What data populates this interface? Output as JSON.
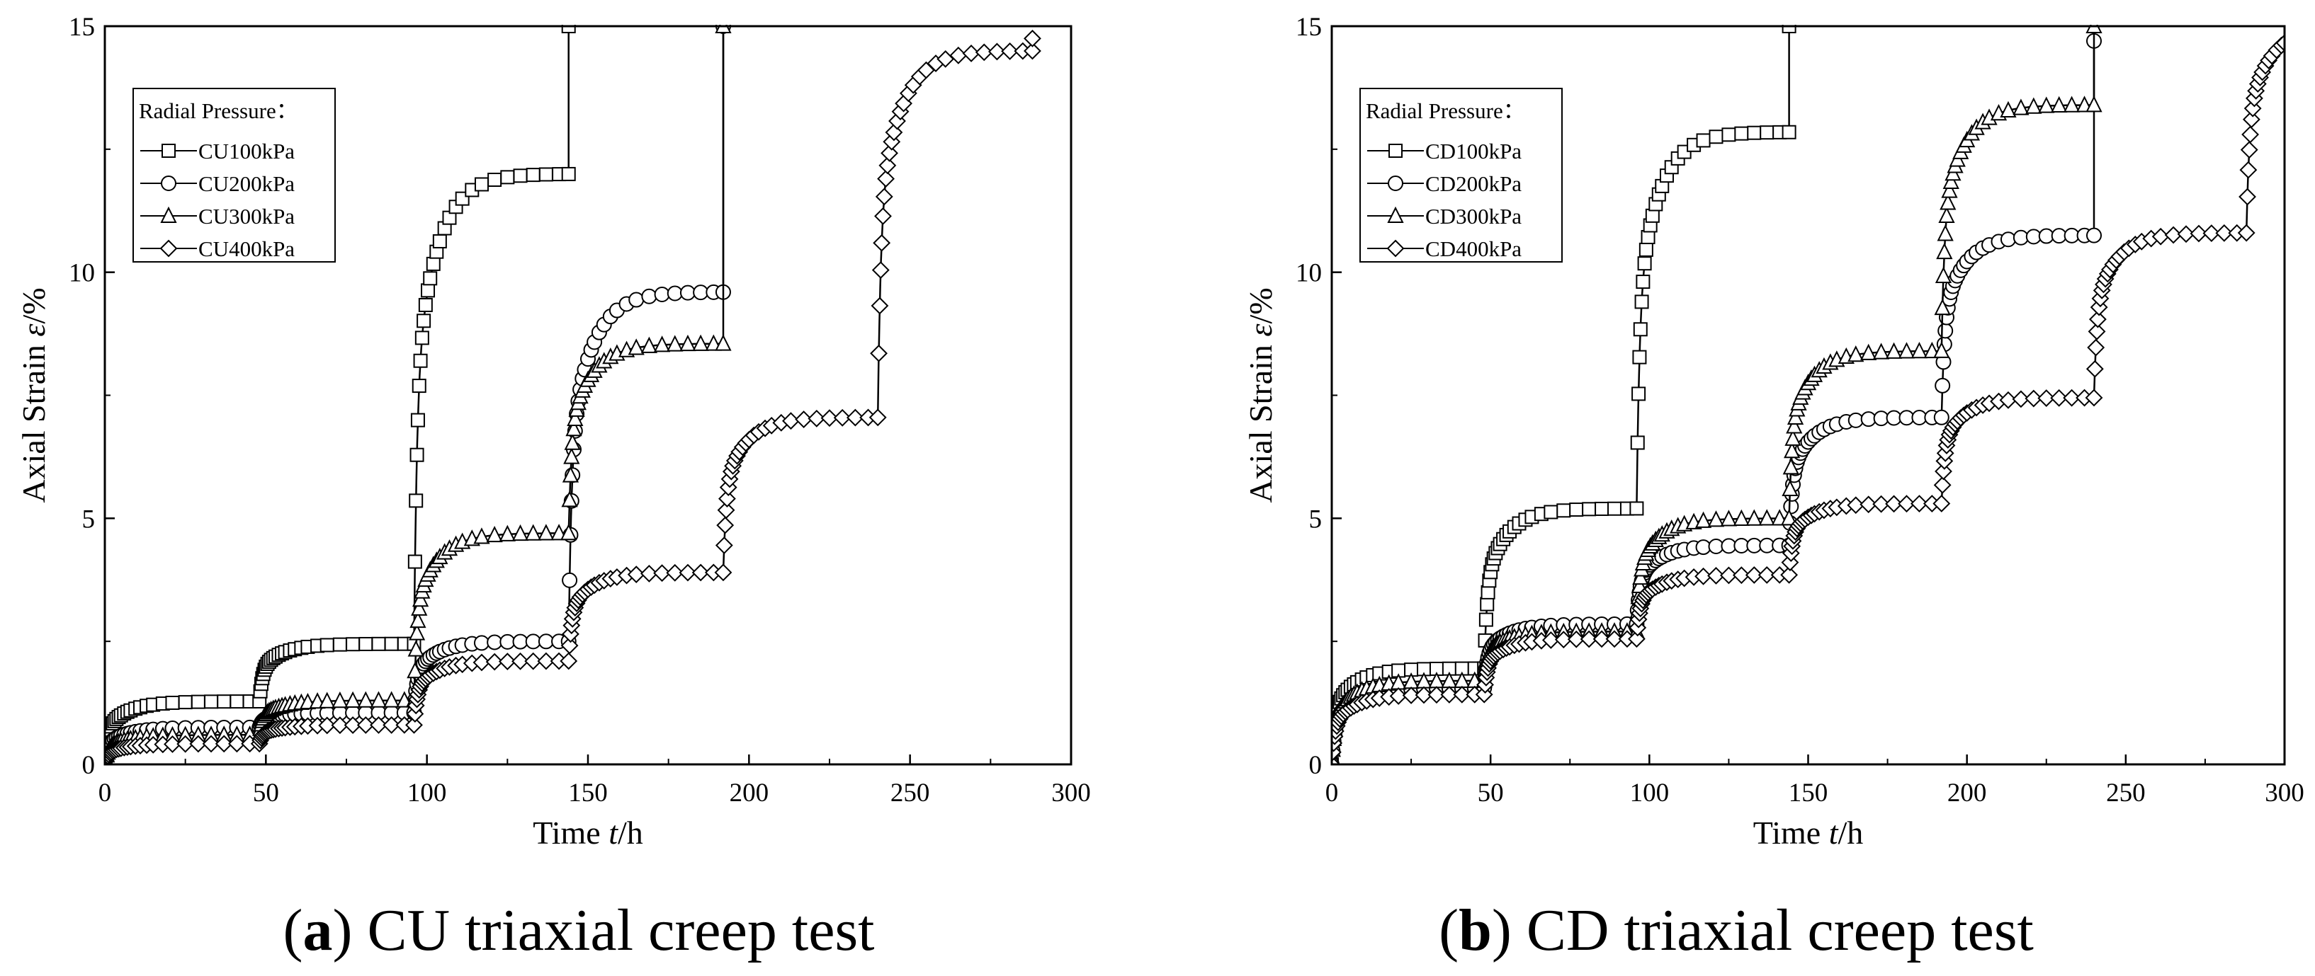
{
  "figure": {
    "caption_a": {
      "letter": "a",
      "text": "CU triaxial creep test"
    },
    "caption_b": {
      "letter": "b",
      "text": "CD triaxial creep test"
    }
  },
  "chart_data": [
    {
      "id": "a",
      "type": "line",
      "title": "CU triaxial creep test",
      "xlabel": "Time t/h",
      "ylabel": "Axial Strain ε/%",
      "xlim": [
        0,
        300
      ],
      "ylim": [
        0,
        15
      ],
      "xticks": [
        0,
        50,
        100,
        150,
        200,
        250,
        300
      ],
      "yticks": [
        0,
        5,
        10,
        15
      ],
      "grid": false,
      "legend_title": "Radial Pressure：",
      "legend_position": "top-left",
      "series": [
        {
          "name": "CU100kPa",
          "marker": "square",
          "stages": [
            {
              "t0": 0,
              "t1": 48,
              "start": 0,
              "end": 1.28
            },
            {
              "t0": 48,
              "t1": 96,
              "start": 1.28,
              "end": 2.45
            },
            {
              "t0": 96,
              "t1": 144,
              "start": 2.45,
              "end": 12.0
            }
          ],
          "failure": {
            "t": 144,
            "to": 15
          }
        },
        {
          "name": "CU200kPa",
          "marker": "circle",
          "stages": [
            {
              "t0": 0,
              "t1": 48,
              "start": 0,
              "end": 0.75
            },
            {
              "t0": 48,
              "t1": 96,
              "start": 0.75,
              "end": 1.05
            },
            {
              "t0": 96,
              "t1": 144,
              "start": 1.05,
              "end": 2.5
            },
            {
              "t0": 144,
              "t1": 192,
              "start": 2.5,
              "end": 9.6
            }
          ],
          "failure": {
            "t": 192,
            "to": 15
          }
        },
        {
          "name": "CU300kPa",
          "marker": "triangle",
          "stages": [
            {
              "t0": 0,
              "t1": 48,
              "start": 0,
              "end": 0.6
            },
            {
              "t0": 48,
              "t1": 96,
              "start": 0.6,
              "end": 1.3
            },
            {
              "t0": 96,
              "t1": 144,
              "start": 1.3,
              "end": 4.7
            },
            {
              "t0": 144,
              "t1": 192,
              "start": 4.7,
              "end": 8.55
            }
          ],
          "failure": {
            "t": 192,
            "to": 15
          }
        },
        {
          "name": "CU400kPa",
          "marker": "diamond",
          "stages": [
            {
              "t0": 0,
              "t1": 48,
              "start": 0,
              "end": 0.42
            },
            {
              "t0": 48,
              "t1": 96,
              "start": 0.42,
              "end": 0.8
            },
            {
              "t0": 96,
              "t1": 144,
              "start": 0.8,
              "end": 2.1
            },
            {
              "t0": 144,
              "t1": 192,
              "start": 2.1,
              "end": 3.9
            },
            {
              "t0": 192,
              "t1": 240,
              "start": 3.9,
              "end": 7.05
            },
            {
              "t0": 240,
              "t1": 288,
              "start": 7.05,
              "end": 14.5
            }
          ],
          "failure": {
            "t": 288,
            "to": 14.75
          }
        }
      ]
    },
    {
      "id": "b",
      "type": "line",
      "title": "CD triaxial creep test",
      "xlabel": "Time t/h",
      "ylabel": "Axial Strain ε/%",
      "xlim": [
        0,
        300
      ],
      "ylim": [
        0,
        15
      ],
      "xticks": [
        0,
        50,
        100,
        150,
        200,
        250,
        300
      ],
      "yticks": [
        0,
        5,
        10,
        15
      ],
      "grid": false,
      "legend_title": "Radial Pressure：",
      "legend_position": "top-left",
      "series": [
        {
          "name": "CD100kPa",
          "marker": "square",
          "stages": [
            {
              "t0": 0,
              "t1": 48,
              "start": 0,
              "end": 1.95
            },
            {
              "t0": 48,
              "t1": 96,
              "start": 1.95,
              "end": 5.2
            },
            {
              "t0": 96,
              "t1": 144,
              "start": 5.2,
              "end": 12.85
            }
          ],
          "failure": {
            "t": 144,
            "to": 15
          }
        },
        {
          "name": "CD200kPa",
          "marker": "circle",
          "stages": [
            {
              "t0": 0,
              "t1": 48,
              "start": 0,
              "end": 1.55
            },
            {
              "t0": 48,
              "t1": 96,
              "start": 1.55,
              "end": 2.85
            },
            {
              "t0": 96,
              "t1": 144,
              "start": 2.85,
              "end": 4.45
            },
            {
              "t0": 144,
              "t1": 192,
              "start": 4.45,
              "end": 7.05
            },
            {
              "t0": 192,
              "t1": 240,
              "start": 7.05,
              "end": 10.75
            }
          ],
          "failure": {
            "t": 240,
            "to": 14.7
          }
        },
        {
          "name": "CD300kPa",
          "marker": "triangle",
          "stages": [
            {
              "t0": 0,
              "t1": 48,
              "start": 0,
              "end": 1.7
            },
            {
              "t0": 48,
              "t1": 96,
              "start": 1.7,
              "end": 2.7
            },
            {
              "t0": 96,
              "t1": 144,
              "start": 2.7,
              "end": 5.0
            },
            {
              "t0": 144,
              "t1": 192,
              "start": 5.0,
              "end": 8.4
            },
            {
              "t0": 192,
              "t1": 240,
              "start": 8.4,
              "end": 13.4
            }
          ],
          "failure": {
            "t": 240,
            "to": 15
          }
        },
        {
          "name": "CD400kPa",
          "marker": "diamond",
          "stages": [
            {
              "t0": 0,
              "t1": 48,
              "start": 0,
              "end": 1.42
            },
            {
              "t0": 48,
              "t1": 96,
              "start": 1.42,
              "end": 2.55
            },
            {
              "t0": 96,
              "t1": 144,
              "start": 2.55,
              "end": 3.85
            },
            {
              "t0": 144,
              "t1": 192,
              "start": 3.85,
              "end": 5.3
            },
            {
              "t0": 192,
              "t1": 240,
              "start": 5.3,
              "end": 7.45
            },
            {
              "t0": 240,
              "t1": 288,
              "start": 7.45,
              "end": 10.8
            },
            {
              "t0": 288,
              "t1": 300,
              "start": 10.8,
              "end": 15.0
            }
          ],
          "failure": null
        }
      ]
    }
  ]
}
